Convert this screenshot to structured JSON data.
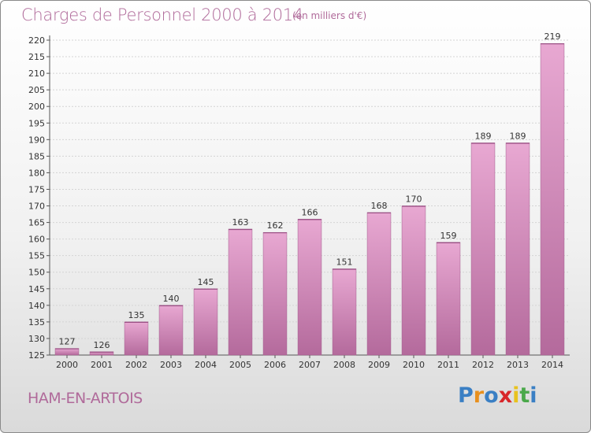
{
  "header": {
    "title": "Charges de Personnel 2000 à 2014",
    "subtitle": "(en milliers d'€)"
  },
  "footer": {
    "city": "HAM-EN-ARTOIS",
    "logo_text": "Proxiti",
    "logo_colors": [
      "#3a7fc4",
      "#e8901e",
      "#3a7fc4",
      "#d8262a",
      "#e8c21e",
      "#4aa84a",
      "#3a7fc4"
    ]
  },
  "chart_data": {
    "type": "bar",
    "title": "Charges de Personnel 2000 à 2014",
    "subtitle": "(en milliers d'€)",
    "categories": [
      "2000",
      "2001",
      "2002",
      "2003",
      "2004",
      "2005",
      "2006",
      "2007",
      "2008",
      "2009",
      "2010",
      "2011",
      "2012",
      "2013",
      "2014"
    ],
    "values": [
      127,
      126,
      135,
      140,
      145,
      163,
      162,
      166,
      151,
      168,
      170,
      159,
      189,
      189,
      219
    ],
    "value_labels": [
      "127",
      "126",
      "135",
      "140",
      "145",
      "163",
      "162",
      "166",
      "151",
      "168",
      "170",
      "159",
      "189",
      "189",
      "219"
    ],
    "ylim": [
      125,
      220
    ],
    "yticks": [
      "125",
      "130",
      "135",
      "140",
      "145",
      "150",
      "155",
      "160",
      "165",
      "170",
      "175",
      "180",
      "185",
      "190",
      "195",
      "200",
      "205",
      "210",
      "215",
      "220"
    ],
    "grid": true,
    "bar_color": "#d98cc0"
  }
}
